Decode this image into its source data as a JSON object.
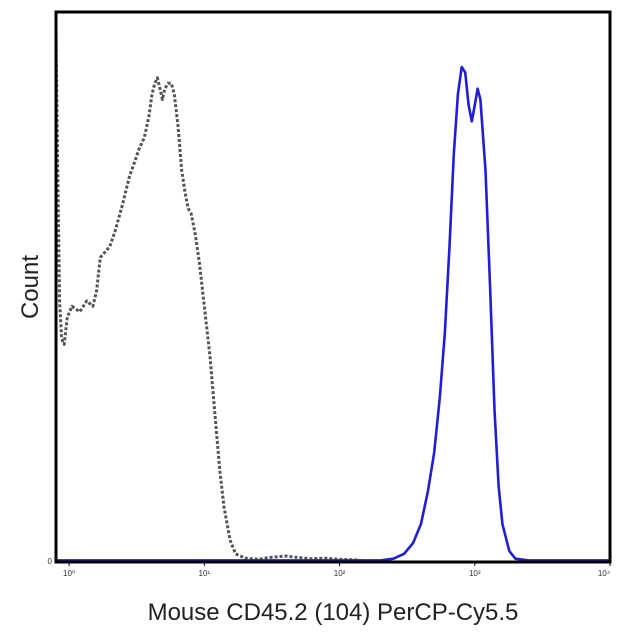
{
  "chart_data": {
    "type": "line",
    "xlabel": "Mouse CD45.2 (104) PerCP-Cy5.5",
    "ylabel": "Count",
    "x_scale": "log",
    "xlim": [
      0.8,
      10000
    ],
    "ylim": [
      0,
      100
    ],
    "x_ticks": [
      {
        "value": 1,
        "label": "10⁰"
      },
      {
        "value": 10,
        "label": "10¹"
      },
      {
        "value": 100,
        "label": "10²"
      },
      {
        "value": 1000,
        "label": "10³"
      },
      {
        "value": 10000,
        "label": "10⁴"
      }
    ],
    "y_ticks": [
      {
        "value": 0,
        "label": "0"
      }
    ],
    "grid": false,
    "legend": "none",
    "series": [
      {
        "style": "dotted",
        "color": "#555555",
        "points": [
          [
            0.8,
            97
          ],
          [
            0.82,
            75
          ],
          [
            0.85,
            48
          ],
          [
            0.88,
            41
          ],
          [
            0.92,
            40
          ],
          [
            0.97,
            45
          ],
          [
            1.05,
            47
          ],
          [
            1.2,
            46
          ],
          [
            1.35,
            48
          ],
          [
            1.5,
            47
          ],
          [
            1.6,
            50
          ],
          [
            1.7,
            56
          ],
          [
            1.85,
            57
          ],
          [
            2.0,
            58
          ],
          [
            2.2,
            61
          ],
          [
            2.5,
            66
          ],
          [
            2.8,
            71
          ],
          [
            3.0,
            73
          ],
          [
            3.3,
            76
          ],
          [
            3.6,
            78
          ],
          [
            3.9,
            82
          ],
          [
            4.1,
            86
          ],
          [
            4.3,
            88
          ],
          [
            4.5,
            89
          ],
          [
            4.7,
            87
          ],
          [
            4.9,
            85
          ],
          [
            5.1,
            87
          ],
          [
            5.4,
            88
          ],
          [
            5.7,
            88
          ],
          [
            6.0,
            86
          ],
          [
            6.4,
            80
          ],
          [
            6.8,
            72
          ],
          [
            7.2,
            68
          ],
          [
            7.6,
            65
          ],
          [
            8.0,
            64
          ],
          [
            8.6,
            60
          ],
          [
            9.2,
            55
          ],
          [
            10.0,
            47
          ],
          [
            11.0,
            38
          ],
          [
            12.0,
            27
          ],
          [
            13.0,
            17
          ],
          [
            14.0,
            10
          ],
          [
            15.5,
            4
          ],
          [
            17.0,
            1.5
          ],
          [
            20.0,
            0.7
          ],
          [
            25.0,
            0.5
          ],
          [
            30.0,
            0.8
          ],
          [
            40.0,
            1.1
          ],
          [
            50.0,
            0.8
          ],
          [
            60.0,
            0.6
          ],
          [
            80.0,
            0.7
          ],
          [
            100.0,
            0.5
          ],
          [
            130.0,
            0.4
          ],
          [
            150.0,
            0.2
          ]
        ]
      },
      {
        "style": "solid",
        "color": "#1f1fd6",
        "points": [
          [
            0.8,
            0.3
          ],
          [
            1.0,
            0.3
          ],
          [
            10.0,
            0.3
          ],
          [
            100.0,
            0.3
          ],
          [
            200.0,
            0.3
          ],
          [
            250.0,
            0.6
          ],
          [
            300.0,
            1.5
          ],
          [
            350.0,
            3.5
          ],
          [
            400.0,
            7
          ],
          [
            450.0,
            13
          ],
          [
            500.0,
            20
          ],
          [
            550.0,
            30
          ],
          [
            600.0,
            42
          ],
          [
            650.0,
            58
          ],
          [
            700.0,
            75
          ],
          [
            750.0,
            86
          ],
          [
            800.0,
            91
          ],
          [
            850.0,
            90
          ],
          [
            900.0,
            84
          ],
          [
            950.0,
            81
          ],
          [
            1000.0,
            84
          ],
          [
            1050.0,
            87
          ],
          [
            1100.0,
            85
          ],
          [
            1200.0,
            72
          ],
          [
            1300.0,
            50
          ],
          [
            1400.0,
            28
          ],
          [
            1500.0,
            14
          ],
          [
            1600.0,
            7
          ],
          [
            1800.0,
            2
          ],
          [
            2000.0,
            0.6
          ],
          [
            2500.0,
            0.3
          ],
          [
            5000.0,
            0.3
          ],
          [
            10000.0,
            0.3
          ]
        ]
      }
    ]
  }
}
